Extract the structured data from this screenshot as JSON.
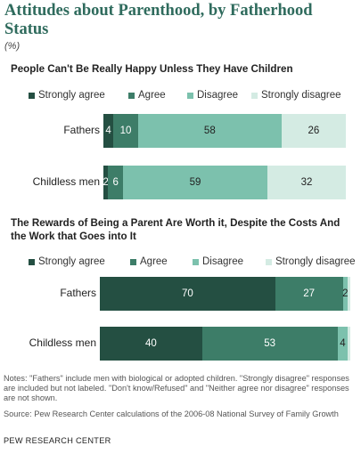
{
  "header": {
    "title": "Attitudes about Parenthood, by Fatherhood Status",
    "unit": "(%)"
  },
  "notes": "Notes: \"Fathers\" include men with biological or adopted children. \"Strongly disagree\" responses are included but not labeled. \"Don't know/Refused\" and \"Neither agree nor disagree\" responses are not shown.",
  "source": "Source: Pew Research Center calculations of the 2006-08 National Survey of Family Growth",
  "footer": "PEW RESEARCH CENTER",
  "colors": {
    "strongly_agree": "#244f42",
    "agree": "#3d7d68",
    "disagree": "#7cc1ad",
    "strongly_disagree": "#d4ebe3"
  },
  "chart_data": [
    {
      "type": "bar",
      "orientation": "horizontal",
      "stacked": true,
      "title": "People Can't Be Really Happy Unless They Have Children",
      "categories": [
        "Fathers",
        "Childless men"
      ],
      "series": [
        {
          "name": "Strongly agree",
          "values": [
            4,
            2
          ],
          "labels": [
            "4",
            "2"
          ]
        },
        {
          "name": "Agree",
          "values": [
            10,
            6
          ],
          "labels": [
            "10",
            "6"
          ]
        },
        {
          "name": "Disagree",
          "values": [
            58,
            59
          ],
          "labels": [
            "58",
            "59"
          ]
        },
        {
          "name": "Strongly disagree",
          "values": [
            26,
            32
          ],
          "labels": [
            "26",
            "32"
          ]
        }
      ],
      "xlim": [
        0,
        100
      ],
      "legend": "top",
      "grid": false
    },
    {
      "type": "bar",
      "orientation": "horizontal",
      "stacked": true,
      "title": "The Rewards of Being a Parent Are Worth it, Despite the Costs And the Work that Goes into It",
      "categories": [
        "Fathers",
        "Childless men"
      ],
      "series": [
        {
          "name": "Strongly agree",
          "values": [
            70,
            40
          ],
          "labels": [
            "70",
            "40"
          ]
        },
        {
          "name": "Agree",
          "values": [
            27,
            53
          ],
          "labels": [
            "27",
            "53"
          ]
        },
        {
          "name": "Disagree",
          "values": [
            2,
            4
          ],
          "labels": [
            "2",
            "4"
          ]
        },
        {
          "name": "Strongly disagree",
          "values": [
            1,
            1
          ],
          "labels": [
            "",
            ""
          ]
        }
      ],
      "xlim": [
        0,
        100
      ],
      "legend": "top",
      "grid": false
    }
  ]
}
